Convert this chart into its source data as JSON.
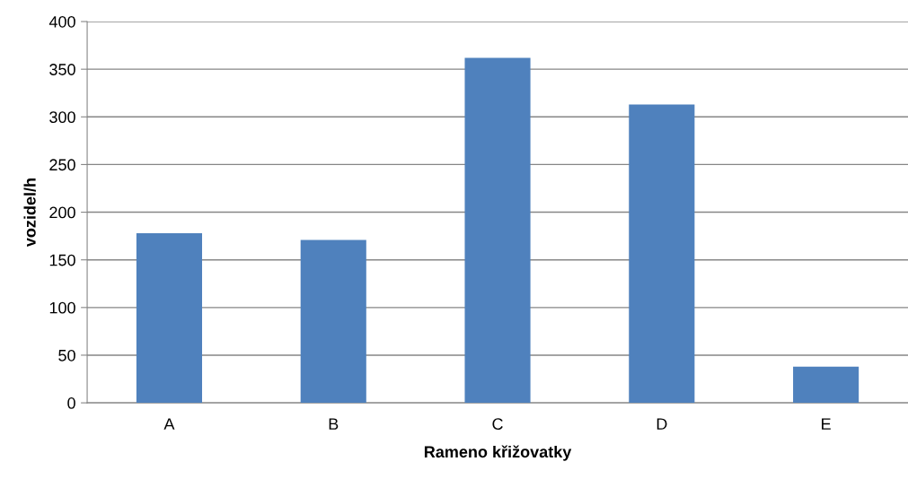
{
  "chart_data": {
    "type": "bar",
    "xlabel": "Rameno křižovatky",
    "ylabel": "vozidel/h",
    "categories": [
      "A",
      "B",
      "C",
      "D",
      "E"
    ],
    "values": [
      178,
      171,
      362,
      313,
      38
    ],
    "color": "#4f81bd",
    "ylim": [
      0,
      400
    ],
    "yticks": [
      0,
      50,
      100,
      150,
      200,
      250,
      300,
      350,
      400
    ],
    "grid": "y"
  }
}
